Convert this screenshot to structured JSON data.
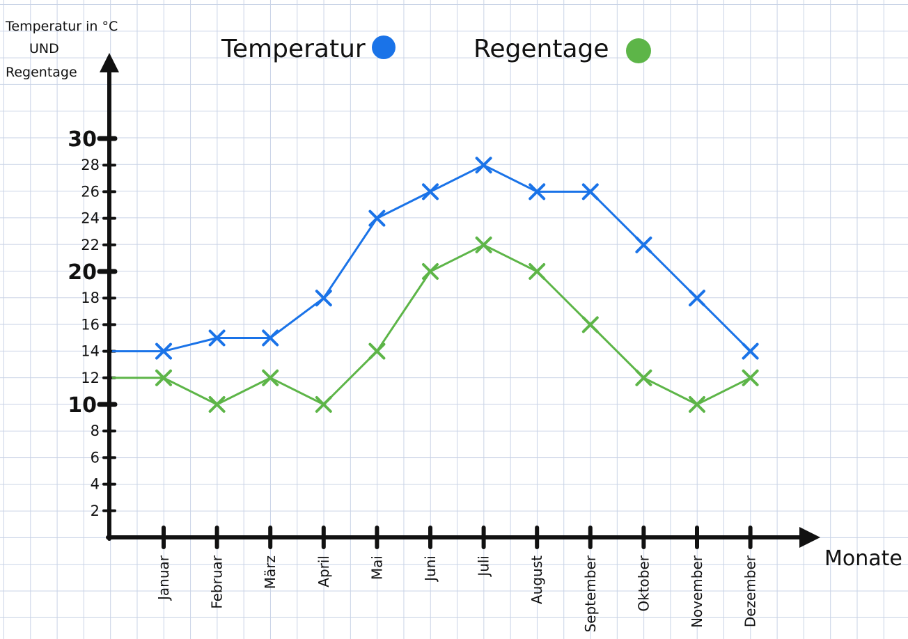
{
  "chart_data": {
    "type": "line",
    "title": "",
    "ylabel": [
      "Temperatur in °C",
      "UND",
      "Regentage"
    ],
    "xlabel": "Monate",
    "categories": [
      "Januar",
      "Februar",
      "März",
      "April",
      "Mai",
      "Juni",
      "Juli",
      "August",
      "September",
      "Oktober",
      "November",
      "Dezember"
    ],
    "yticks": [
      2,
      4,
      6,
      8,
      10,
      12,
      14,
      16,
      18,
      20,
      22,
      24,
      26,
      28,
      30
    ],
    "major_yticks": [
      10,
      20,
      30
    ],
    "ylim": [
      0,
      35
    ],
    "grid": true,
    "legend_position": "top",
    "series": [
      {
        "name": "Temperatur",
        "color": "#1a73e8",
        "start_value": 14,
        "values": [
          14,
          15,
          15,
          18,
          24,
          26,
          28,
          26,
          26,
          22,
          18,
          14
        ]
      },
      {
        "name": "Regentage",
        "color": "#5db548",
        "start_value": 12,
        "values": [
          12,
          10,
          12,
          10,
          14,
          20,
          22,
          20,
          16,
          12,
          10,
          12
        ]
      }
    ]
  }
}
